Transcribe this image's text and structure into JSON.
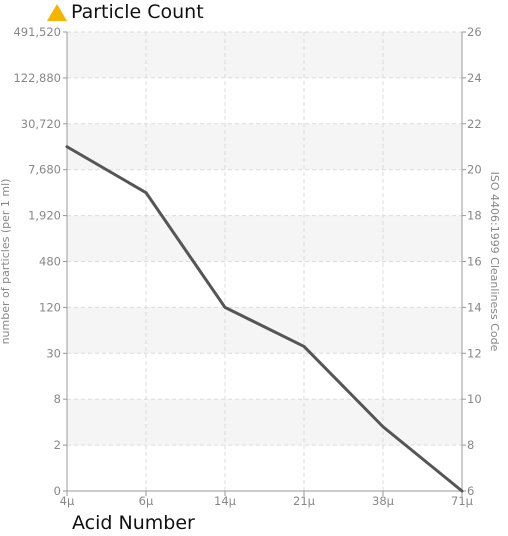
{
  "header": {
    "title": "Particle Count",
    "icon": "warning-triangle-icon",
    "icon_color": "#f5b400"
  },
  "footer": {
    "caption": "Acid Number"
  },
  "chart_data": {
    "type": "line",
    "categories": [
      "4μ",
      "6μ",
      "14μ",
      "21μ",
      "38μ",
      "71μ"
    ],
    "series": [
      {
        "values": [
          21,
          19,
          14,
          12.3,
          8.8,
          6
        ]
      }
    ],
    "line_color": "#555555",
    "y_left": {
      "label": "number of particles (per 1 ml)",
      "ticks": [
        "0",
        "2",
        "8",
        "30",
        "120",
        "480",
        "1,920",
        "7,680",
        "30,720",
        "122,880",
        "491,520"
      ]
    },
    "y_right": {
      "label": "ISO 4406:1999 Cleanliness Code",
      "ticks": [
        "6",
        "8",
        "10",
        "12",
        "14",
        "16",
        "18",
        "20",
        "22",
        "24",
        "26"
      ],
      "ylim": [
        6,
        26
      ]
    },
    "grid": true
  }
}
